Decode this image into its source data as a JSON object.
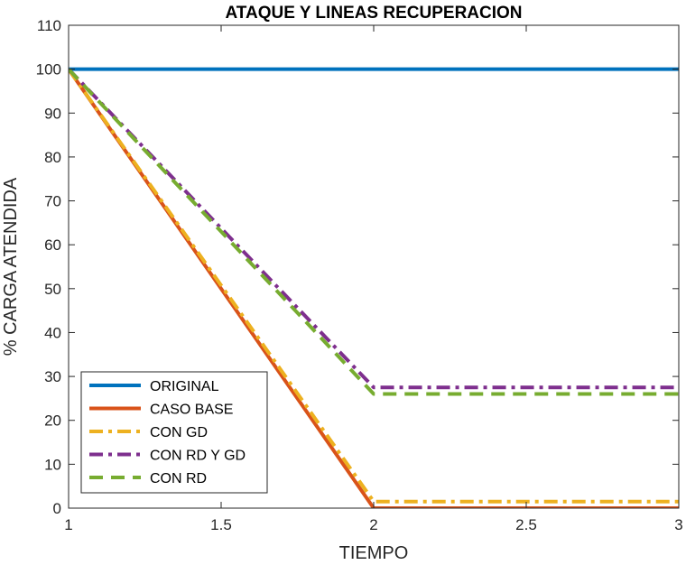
{
  "chart_data": {
    "type": "line",
    "title": "ATAQUE Y LINEAS RECUPERACION",
    "xlabel": "TIEMPO",
    "ylabel": "% CARGA ATENDIDA",
    "xlim": [
      1,
      3
    ],
    "ylim": [
      0,
      110
    ],
    "xticks": [
      1,
      1.5,
      2,
      2.5,
      3
    ],
    "xtick_labels": [
      "1",
      "1.5",
      "2",
      "2.5",
      "3"
    ],
    "yticks": [
      0,
      10,
      20,
      30,
      40,
      50,
      60,
      70,
      80,
      90,
      100,
      110
    ],
    "ytick_labels": [
      "0",
      "10",
      "20",
      "30",
      "40",
      "50",
      "60",
      "70",
      "80",
      "90",
      "100",
      "110"
    ],
    "grid": false,
    "box": true,
    "legend_position": "bottom-left",
    "series": [
      {
        "name": "ORIGINAL",
        "x": [
          1,
          2,
          3
        ],
        "y": [
          100,
          100,
          100
        ],
        "color": "#0072BD",
        "style": "solid"
      },
      {
        "name": "CASO BASE",
        "x": [
          1,
          2,
          3
        ],
        "y": [
          100,
          0,
          0
        ],
        "color": "#D95319",
        "style": "solid"
      },
      {
        "name": "CON GD",
        "x": [
          1,
          2,
          3
        ],
        "y": [
          100,
          1.5,
          1.5
        ],
        "color": "#EDB120",
        "style": "dashdot"
      },
      {
        "name": "CON RD Y GD",
        "x": [
          1,
          2,
          3
        ],
        "y": [
          100,
          27.5,
          27.5
        ],
        "color": "#7E2F8E",
        "style": "dashdot"
      },
      {
        "name": "CON RD",
        "x": [
          1,
          2,
          3
        ],
        "y": [
          100,
          26,
          26
        ],
        "color": "#77AC30",
        "style": "dashed"
      }
    ]
  }
}
